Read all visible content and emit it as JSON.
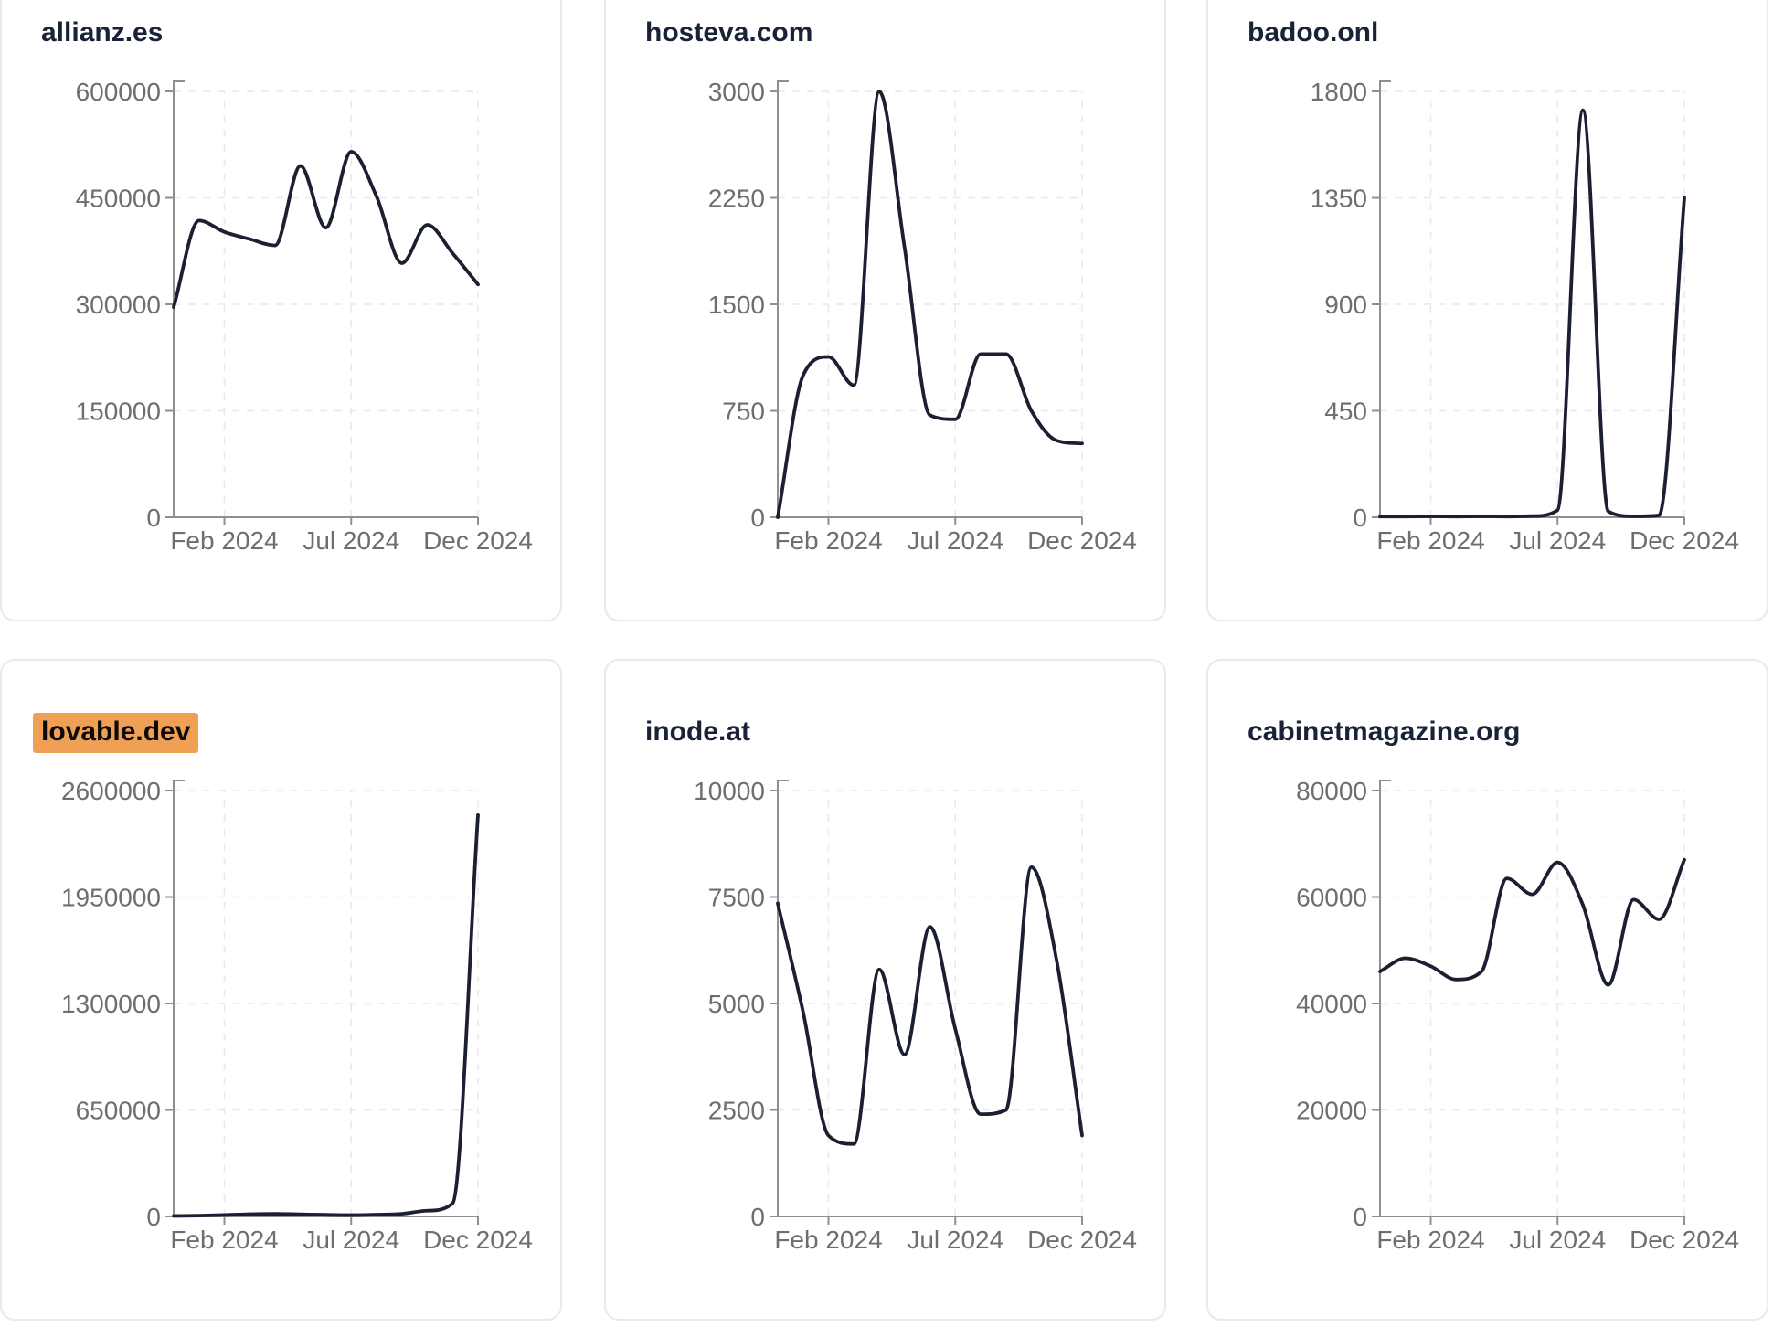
{
  "style": {
    "page_background": "#ffffff",
    "card_background": "#ffffff",
    "card_border_color": "#e9e9ee",
    "title_color": "#1a2238",
    "highlight_background": "#f0a055",
    "highlight_text_color": "#0b0b0b",
    "line_color": "#1a2032",
    "axis_color": "#8f8f8f",
    "grid_color": "#e9e9eb",
    "tick_label_color": "#6e6e6e"
  },
  "chart_data": [
    {
      "type": "line",
      "title": "allianz.es",
      "title_highlighted": false,
      "x_tick_labels": [
        "Feb 2024",
        "Jul 2024",
        "Dec 2024"
      ],
      "x_tick_indices": [
        2,
        7,
        12
      ],
      "y_ticks": [
        0,
        150000,
        300000,
        450000,
        600000
      ],
      "ylim": [
        0,
        600000
      ],
      "grid": "dashed",
      "legend": "none",
      "values": [
        296000,
        418000,
        402000,
        392000,
        383000,
        495000,
        408000,
        515000,
        452000,
        358000,
        412000,
        372000,
        328000
      ]
    },
    {
      "type": "line",
      "title": "hosteva.com",
      "title_highlighted": false,
      "x_tick_labels": [
        "Feb 2024",
        "Jul 2024",
        "Dec 2024"
      ],
      "x_tick_indices": [
        2,
        7,
        12
      ],
      "y_ticks": [
        0,
        750,
        1500,
        2250,
        3000
      ],
      "ylim": [
        0,
        3000
      ],
      "grid": "dashed",
      "legend": "none",
      "values": [
        0,
        1000,
        1130,
        930,
        3000,
        1900,
        720,
        690,
        1150,
        1150,
        750,
        540,
        520
      ]
    },
    {
      "type": "line",
      "title": "badoo.onl",
      "title_highlighted": false,
      "x_tick_labels": [
        "Feb 2024",
        "Jul 2024",
        "Dec 2024"
      ],
      "x_tick_indices": [
        2,
        7,
        12
      ],
      "y_ticks": [
        0,
        450,
        900,
        1350,
        1800
      ],
      "ylim": [
        0,
        1800
      ],
      "grid": "dashed",
      "legend": "none",
      "values": [
        3,
        3,
        4,
        3,
        4,
        3,
        5,
        30,
        1720,
        25,
        4,
        8,
        1350
      ]
    },
    {
      "type": "line",
      "title": "lovable.dev",
      "title_highlighted": true,
      "x_tick_labels": [
        "Feb 2024",
        "Jul 2024",
        "Dec 2024"
      ],
      "x_tick_indices": [
        2,
        7,
        12
      ],
      "y_ticks": [
        0,
        650000,
        1300000,
        1950000,
        2600000
      ],
      "ylim": [
        0,
        2600000
      ],
      "grid": "dashed",
      "legend": "none",
      "values": [
        3000,
        5000,
        9000,
        14000,
        16000,
        13000,
        10000,
        8000,
        11000,
        16000,
        35000,
        80000,
        2450000
      ]
    },
    {
      "type": "line",
      "title": "inode.at",
      "title_highlighted": false,
      "x_tick_labels": [
        "Feb 2024",
        "Jul 2024",
        "Dec 2024"
      ],
      "x_tick_indices": [
        2,
        7,
        12
      ],
      "y_ticks": [
        0,
        2500,
        5000,
        7500,
        10000
      ],
      "ylim": [
        0,
        10000
      ],
      "grid": "dashed",
      "legend": "none",
      "values": [
        7350,
        4800,
        1900,
        1700,
        5800,
        3800,
        6800,
        4400,
        2400,
        2500,
        8200,
        6000,
        1900
      ]
    },
    {
      "type": "line",
      "title": "cabinetmagazine.org",
      "title_highlighted": false,
      "x_tick_labels": [
        "Feb 2024",
        "Jul 2024",
        "Dec 2024"
      ],
      "x_tick_indices": [
        2,
        7,
        12
      ],
      "y_ticks": [
        0,
        20000,
        40000,
        60000,
        80000
      ],
      "ylim": [
        0,
        80000
      ],
      "grid": "dashed",
      "legend": "none",
      "values": [
        46000,
        48500,
        47000,
        44500,
        46000,
        63500,
        60500,
        66500,
        58500,
        43500,
        59500,
        55800,
        67000
      ]
    }
  ]
}
